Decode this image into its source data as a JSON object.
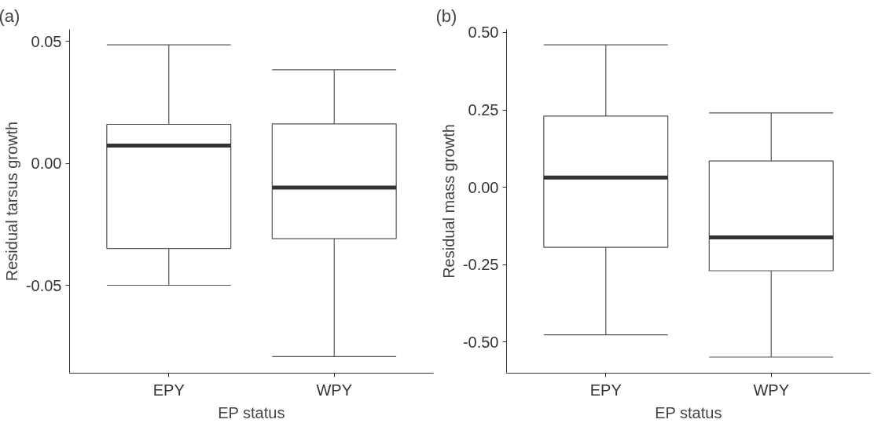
{
  "chart_data": [
    {
      "type": "box",
      "annotations": [
        "(a)"
      ],
      "xlabel": "EP status",
      "ylabel": "Residual tarsus growth",
      "categories": [
        "EPY",
        "WPY"
      ],
      "boxes": [
        {
          "low": -0.0499,
          "q1": -0.0348,
          "median": 0.0073,
          "q3": 0.016,
          "high": 0.0486
        },
        {
          "low": -0.0791,
          "q1": -0.0308,
          "median": -0.0099,
          "q3": 0.0162,
          "high": 0.0384
        }
      ],
      "ylim": [
        -0.0859,
        0.0549
      ],
      "yticks": [
        {
          "value": -0.05,
          "label": "-0.05"
        },
        {
          "value": 0,
          "label": "0.00"
        },
        {
          "value": 0.05,
          "label": "0.05"
        }
      ]
    },
    {
      "type": "box",
      "annotations": [
        "(b)"
      ],
      "xlabel": "EP status",
      "ylabel": "Residual mass growth",
      "categories": [
        "EPY",
        "WPY"
      ],
      "boxes": [
        {
          "low": -0.477,
          "q1": -0.194,
          "median": 0.031,
          "q3": 0.23,
          "high": 0.46
        },
        {
          "low": -0.549,
          "q1": -0.27,
          "median": -0.162,
          "q3": 0.085,
          "high": 0.24
        }
      ],
      "ylim": [
        -0.601,
        0.51
      ],
      "yticks": [
        {
          "value": -0.5,
          "label": "-0.50"
        },
        {
          "value": -0.25,
          "label": "-0.25"
        },
        {
          "value": 0,
          "label": "0.00"
        },
        {
          "value": 0.25,
          "label": "0.25"
        },
        {
          "value": 0.5,
          "label": "0.50"
        }
      ]
    }
  ]
}
